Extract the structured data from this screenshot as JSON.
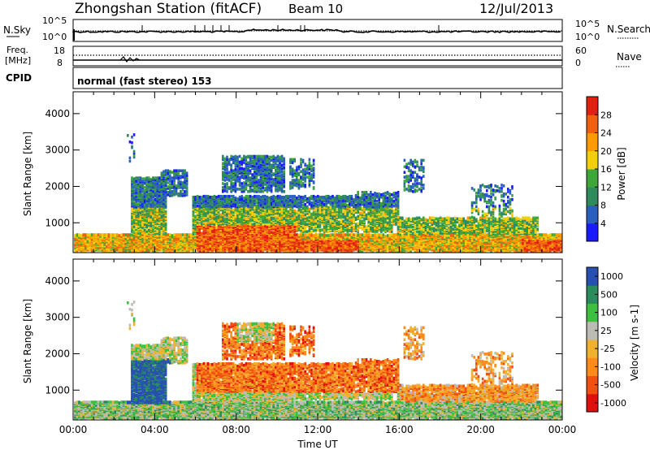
{
  "header": {
    "title": "Zhongshan Station (fitACF)",
    "beam": "Beam 10",
    "date": "12/Jul/2013"
  },
  "strip1": {
    "left_label": "N.Sky",
    "left_ticks": [
      "10^5",
      "10^0"
    ],
    "right_ticks": [
      "10^5",
      "10^0"
    ],
    "right_label": "N.Search"
  },
  "strip2": {
    "left_label_1": "Freq.",
    "left_label_2": "[MHz]",
    "left_ticks": [
      "18",
      "8"
    ],
    "right_ticks": [
      "60",
      "0"
    ],
    "right_label": "Nave"
  },
  "cpid": {
    "label": "CPID",
    "value": "normal (fast stereo) 153"
  },
  "colors": {
    "power": [
      "#1a1aff",
      "#2a5fc0",
      "#2f8a5e",
      "#3fa63a",
      "#f2cf0a",
      "#ff9a00",
      "#f06010",
      "#e02010"
    ],
    "velocity": [
      "#e01010",
      "#f05010",
      "#ff8c1a",
      "#f0b030",
      "#bcbcb4",
      "#3fbf3f",
      "#2a8c5c",
      "#2850b0"
    ]
  },
  "chart_data": [
    {
      "type": "heatmap",
      "title": "Power [dB]",
      "xlabel": "",
      "ylabel": "Slant Range [km]",
      "x_ticks": [
        "00:00",
        "04:00",
        "08:00",
        "12:00",
        "16:00",
        "20:00",
        "00:00"
      ],
      "xlim_hours": [
        0,
        24
      ],
      "y_ticks": [
        1000,
        2000,
        3000,
        4000
      ],
      "ylim": [
        180,
        4600
      ],
      "colorbar": {
        "label": "Power [dB]",
        "ticks": [
          4,
          8,
          12,
          16,
          20,
          24,
          28
        ],
        "range": [
          0,
          32
        ]
      }
    },
    {
      "type": "heatmap",
      "title": "Velocity [m s-1]",
      "xlabel": "Time UT",
      "ylabel": "Slant Range [km]",
      "x_ticks": [
        "00:00",
        "04:00",
        "08:00",
        "12:00",
        "16:00",
        "20:00",
        "00:00"
      ],
      "xlim_hours": [
        0,
        24
      ],
      "y_ticks": [
        1000,
        2000,
        3000,
        4000
      ],
      "ylim": [
        180,
        4600
      ],
      "colorbar": {
        "label": "Velocity [m s-1]",
        "ticks": [
          "1000",
          "500",
          "100",
          "25",
          "-25",
          "-100",
          "-500",
          "-1000"
        ]
      }
    }
  ]
}
